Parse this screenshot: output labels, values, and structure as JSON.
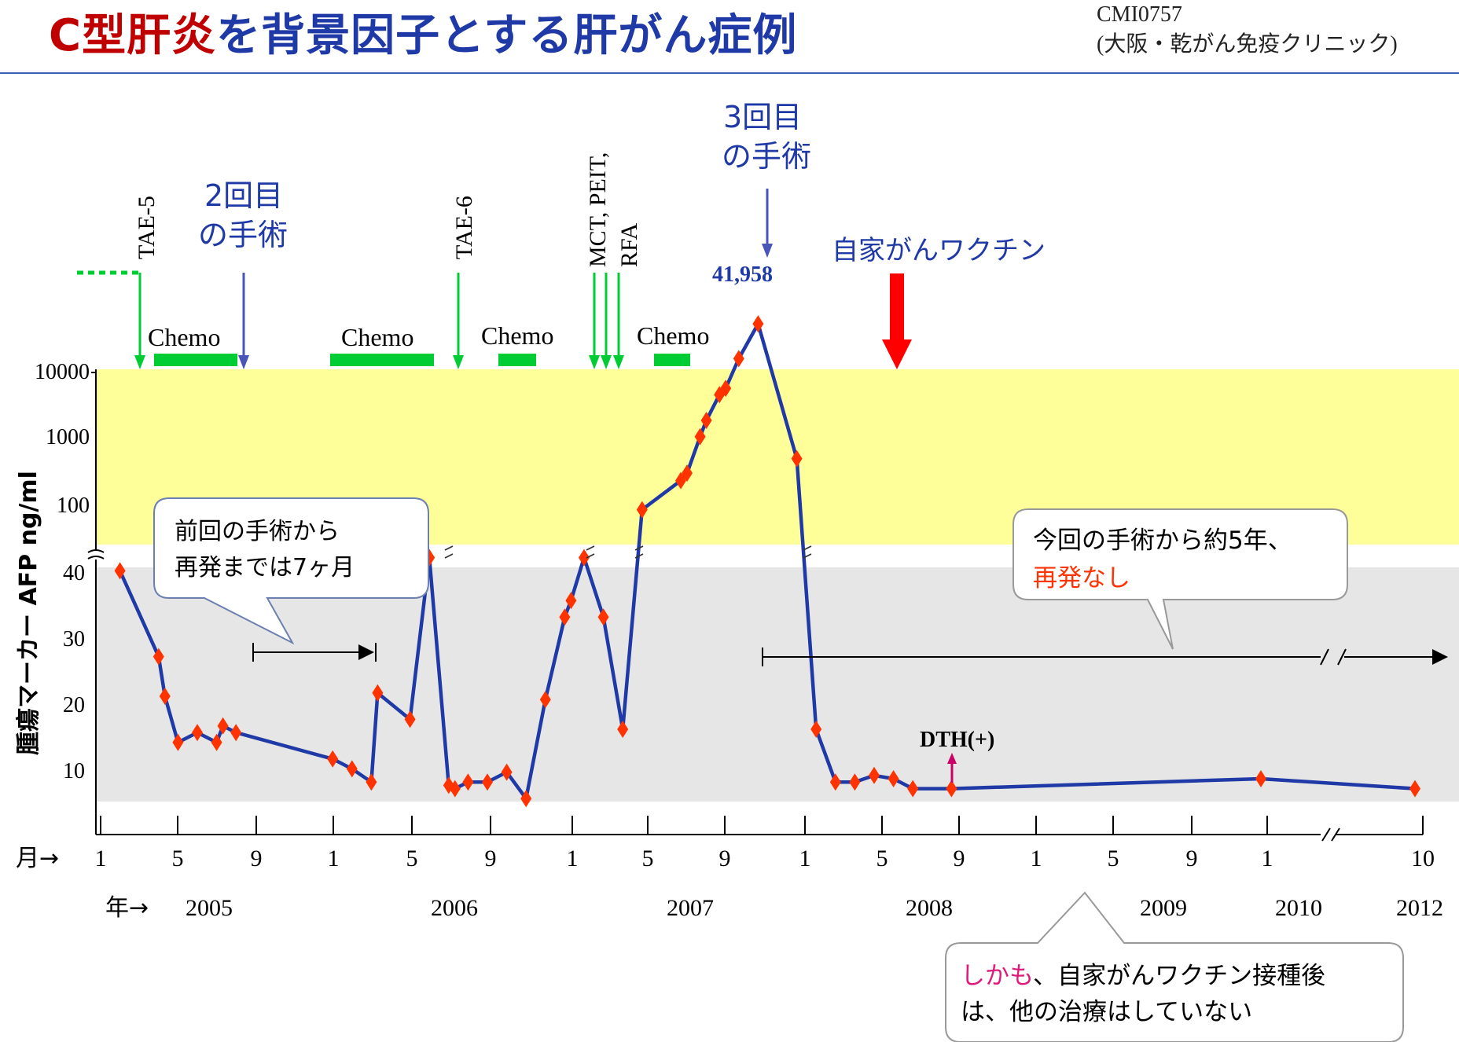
{
  "title": {
    "part1": "C型肝炎",
    "part2": "を背景因子とする肝がん症例"
  },
  "source": {
    "line1": "CMI0757",
    "line2": "(大阪・乾がん免疫クリニック)"
  },
  "colors": {
    "title_red": "#c00000",
    "title_blue": "#1f3aa6",
    "line": "#1f3aa6",
    "marker": "#ff3300",
    "green": "#00cc33",
    "vaccine_red": "#ff0000",
    "high_band": "#ffff99",
    "low_band": "#e6e6e6",
    "dth": "#cc0066"
  },
  "chart_data": {
    "type": "line",
    "ylabel": "腫瘍マーカー AFP ng/ml",
    "y_axis_low": {
      "scale": "linear",
      "ticks": [
        "10",
        "20",
        "30",
        "40"
      ],
      "range": [
        4,
        40
      ]
    },
    "y_axis_high": {
      "scale": "log",
      "ticks": [
        "100",
        "1000",
        "10000"
      ],
      "range": [
        40,
        10000
      ]
    },
    "x_prefix_month": "月→",
    "x_prefix_year": "年→",
    "month_ticks": [
      "1",
      "5",
      "9",
      "1",
      "5",
      "9",
      "1",
      "5",
      "9",
      "1",
      "5",
      "9",
      "1",
      "5",
      "9",
      "1",
      "10"
    ],
    "year_labels": [
      "2005",
      "2006",
      "2007",
      "2008",
      "2009",
      "2010",
      "2012"
    ],
    "series": [
      {
        "points": [
          [
            "2005-02",
            38
          ],
          [
            "2005-04",
            25
          ],
          [
            "2005-04",
            19
          ],
          [
            "2005-05",
            12
          ],
          [
            "2005-06",
            13.5
          ],
          [
            "2005-07",
            12
          ],
          [
            "2005-07",
            14.5
          ],
          [
            "2005-08",
            13.5
          ],
          [
            "2006-01",
            9.5
          ],
          [
            "2006-02",
            8
          ],
          [
            "2006-03",
            6
          ],
          [
            "2006-03",
            19.5
          ],
          [
            "2006-05",
            15.5
          ],
          [
            "2006-06",
            40
          ],
          [
            "2006-07",
            5.5
          ],
          [
            "2006-07",
            5
          ],
          [
            "2006-08",
            6
          ],
          [
            "2006-09",
            6
          ],
          [
            "2006-10",
            7.5
          ],
          [
            "2006-11",
            3.5
          ],
          [
            "2006-12",
            18.5
          ],
          [
            "2007-01",
            31
          ],
          [
            "2007-01",
            33.5
          ],
          [
            "2007-02",
            40
          ],
          [
            "2007-03",
            31
          ],
          [
            "2007-04",
            14
          ],
          [
            "2007-05",
            120
          ],
          [
            "2007-07",
            300
          ],
          [
            "2007-07",
            380
          ],
          [
            "2007-08",
            1200
          ],
          [
            "2007-08",
            2000
          ],
          [
            "2007-09",
            4500
          ],
          [
            "2007-09",
            5500
          ],
          [
            "2007-10",
            14000
          ],
          [
            "2007-11",
            41958
          ],
          [
            "2008-01",
            600
          ],
          [
            "2008-02",
            14
          ],
          [
            "2008-03",
            6
          ],
          [
            "2008-04",
            6
          ],
          [
            "2008-05",
            7
          ],
          [
            "2008-06",
            6.5
          ],
          [
            "2008-07",
            5
          ],
          [
            "2008-09",
            5
          ],
          [
            "2010-01",
            6.5
          ],
          [
            "2012-10",
            5
          ]
        ]
      }
    ],
    "peak_label": "41,958",
    "chemo_label": "Chemo",
    "treatments_top": [
      "TAE-5",
      "TAE-6",
      "MCT, PEIT,",
      "RFA"
    ],
    "surgery_2": [
      "2回目",
      "の手術"
    ],
    "surgery_3": [
      "3回目",
      "の手術"
    ],
    "vaccine_label": "自家がんワクチン",
    "dth_label": "DTH(+)",
    "callout_1": [
      "前回の手術から",
      "再発までは7ヶ月"
    ],
    "callout_2": {
      "line1": "今回の手術から約5年、",
      "line2": "再発なし"
    },
    "callout_3": {
      "highlight": "しかも",
      "rest1": "、自家がんワクチン接種後",
      "line2": "は、他の治療はしていない"
    }
  }
}
